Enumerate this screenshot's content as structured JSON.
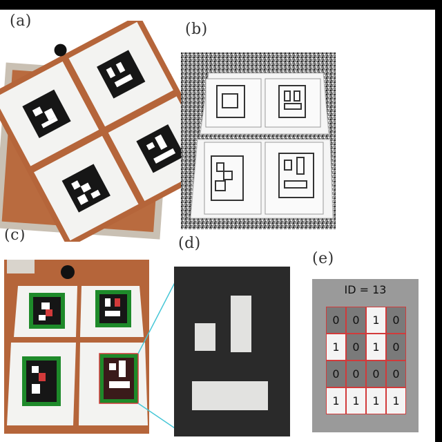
{
  "panels": {
    "a": {
      "label": "(a)"
    },
    "b": {
      "label": "(b)"
    },
    "c": {
      "label": "(c)"
    },
    "d": {
      "label": "(d)"
    },
    "e": {
      "label": "(e)",
      "id_text": "ID = 13",
      "bits": [
        [
          "0",
          "0",
          "1",
          "0"
        ],
        [
          "1",
          "0",
          "1",
          "0"
        ],
        [
          "0",
          "0",
          "0",
          "0"
        ],
        [
          "1",
          "1",
          "1",
          "1"
        ]
      ]
    }
  },
  "colors": {
    "wood": "#b5653a",
    "marker_black": "#161616",
    "detected_green": "#1e8a2a",
    "detected_red": "#d23a3a",
    "connector_cyan": "#44c6d6",
    "panel_e_bg": "#9a9a9a"
  }
}
